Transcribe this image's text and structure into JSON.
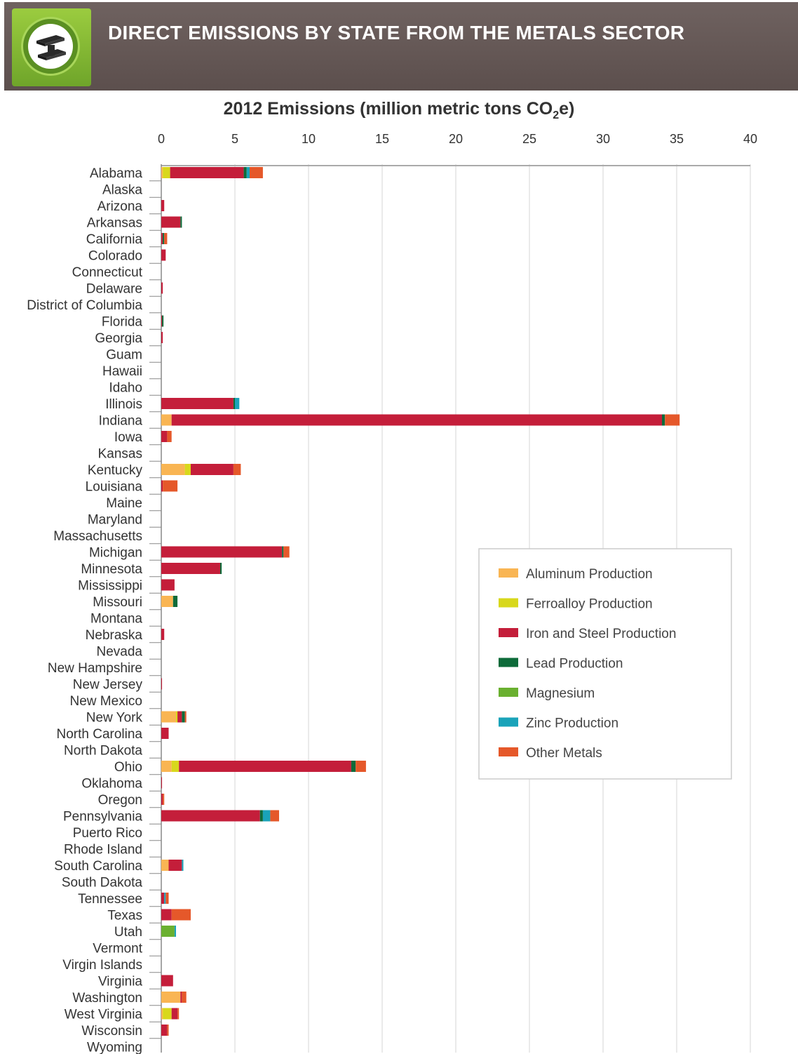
{
  "header": {
    "title": "DIRECT EMISSIONS BY STATE FROM THE METALS SECTOR",
    "icon": "steel-i-beam-icon",
    "colors": {
      "banner": "#63555a",
      "logo": "#8cc040"
    }
  },
  "chart_data": {
    "type": "bar",
    "orientation": "horizontal",
    "stacked": true,
    "title": "2012 Emissions (million metric tons CO2e)",
    "title_parts": {
      "before": "2012 Emissions (million  metric tons CO",
      "sub": "2",
      "after": "e)"
    },
    "xlim": [
      0,
      40
    ],
    "xticks": [
      "0",
      "5",
      "10",
      "15",
      "20",
      "25",
      "30",
      "35",
      "40"
    ],
    "grid": true,
    "axis_position": "top",
    "legend_position": "right-middle",
    "categories": [
      "Alabama",
      "Alaska",
      "Arizona",
      "Arkansas",
      "California",
      "Colorado",
      "Connecticut",
      "Delaware",
      "District of Columbia",
      "Florida",
      "Georgia",
      "Guam",
      "Hawaii",
      "Idaho",
      "Illinois",
      "Indiana",
      "Iowa",
      "Kansas",
      "Kentucky",
      "Louisiana",
      "Maine",
      "Maryland",
      "Massachusetts",
      "Michigan",
      "Minnesota",
      "Mississippi",
      "Missouri",
      "Montana",
      "Nebraska",
      "Nevada",
      "New Hampshire",
      "New Jersey",
      "New Mexico",
      "New York",
      "North Carolina",
      "North Dakota",
      "Ohio",
      "Oklahoma",
      "Oregon",
      "Pennsylvania",
      "Puerto Rico",
      "Rhode Island",
      "South Carolina",
      "South Dakota",
      "Tennessee",
      "Texas",
      "Utah",
      "Vermont",
      "Virgin Islands",
      "Virginia",
      "Washington",
      "West Virginia",
      "Wisconsin",
      "Wyoming"
    ],
    "series": [
      {
        "name": "Aluminum Production",
        "color": "#f9b553",
        "values": [
          0.1,
          0,
          0,
          0,
          0,
          0,
          0,
          0,
          0,
          0,
          0,
          0,
          0,
          0,
          0,
          0.7,
          0,
          0,
          1.6,
          0,
          0,
          0,
          0,
          0,
          0,
          0,
          0.8,
          0,
          0,
          0,
          0,
          0,
          0,
          1.0,
          0,
          0,
          0.7,
          0,
          0,
          0,
          0,
          0,
          0.5,
          0,
          0,
          0,
          0,
          0,
          0,
          0,
          1.3,
          0.1,
          0,
          0
        ]
      },
      {
        "name": "Ferroalloy Production",
        "color": "#d8d81c",
        "values": [
          0.5,
          0,
          0,
          0,
          0,
          0,
          0,
          0,
          0,
          0,
          0,
          0,
          0,
          0,
          0,
          0,
          0,
          0,
          0.4,
          0,
          0,
          0,
          0,
          0,
          0,
          0,
          0,
          0,
          0,
          0,
          0,
          0,
          0,
          0.1,
          0,
          0,
          0.5,
          0,
          0,
          0,
          0,
          0,
          0,
          0,
          0,
          0,
          0,
          0,
          0,
          0,
          0,
          0.6,
          0,
          0
        ]
      },
      {
        "name": "Iron and Steel Production",
        "color": "#c41e3a",
        "values": [
          5.0,
          0,
          0.2,
          1.3,
          0.1,
          0.3,
          0,
          0.1,
          0,
          0.05,
          0.1,
          0,
          0,
          0,
          4.9,
          33.3,
          0.4,
          0,
          2.9,
          0.1,
          0,
          0,
          0,
          8.2,
          4.0,
          0.9,
          0,
          0,
          0.2,
          0,
          0,
          0.05,
          0,
          0.3,
          0.5,
          0,
          11.7,
          0.05,
          0.1,
          6.7,
          0,
          0,
          0.9,
          0,
          0.2,
          0.7,
          0,
          0,
          0,
          0.8,
          0.1,
          0.4,
          0.4,
          0
        ]
      },
      {
        "name": "Lead Production",
        "color": "#0e6b3a",
        "values": [
          0.2,
          0,
          0,
          0.1,
          0.1,
          0,
          0,
          0,
          0,
          0.1,
          0,
          0,
          0,
          0,
          0.1,
          0.2,
          0,
          0,
          0,
          0,
          0,
          0,
          0,
          0.1,
          0.1,
          0,
          0.3,
          0,
          0,
          0,
          0,
          0,
          0,
          0.2,
          0,
          0,
          0.3,
          0,
          0,
          0.2,
          0,
          0,
          0,
          0,
          0,
          0,
          0,
          0,
          0,
          0,
          0,
          0,
          0,
          0
        ]
      },
      {
        "name": "Magnesium",
        "color": "#6ab030",
        "values": [
          0,
          0,
          0,
          0,
          0,
          0,
          0,
          0,
          0,
          0,
          0,
          0,
          0,
          0,
          0,
          0,
          0,
          0,
          0,
          0,
          0,
          0,
          0,
          0,
          0,
          0,
          0,
          0,
          0,
          0,
          0,
          0,
          0,
          0,
          0,
          0,
          0,
          0,
          0,
          0,
          0,
          0,
          0,
          0,
          0,
          0,
          0.9,
          0,
          0,
          0,
          0,
          0,
          0,
          0
        ]
      },
      {
        "name": "Zinc Production",
        "color": "#1aa3b9",
        "values": [
          0.2,
          0,
          0,
          0,
          0,
          0,
          0,
          0,
          0,
          0,
          0,
          0,
          0,
          0,
          0.3,
          0,
          0,
          0,
          0,
          0,
          0,
          0,
          0,
          0,
          0,
          0,
          0,
          0,
          0,
          0,
          0,
          0,
          0,
          0,
          0,
          0,
          0,
          0,
          0,
          0.5,
          0,
          0,
          0.1,
          0,
          0.1,
          0,
          0.1,
          0,
          0,
          0,
          0,
          0,
          0,
          0
        ]
      },
      {
        "name": "Other Metals",
        "color": "#e5582a",
        "values": [
          0.9,
          0,
          0,
          0,
          0.2,
          0,
          0,
          0,
          0,
          0,
          0,
          0,
          0,
          0,
          0,
          1.0,
          0.3,
          0,
          0.5,
          1.0,
          0,
          0,
          0,
          0.4,
          0,
          0,
          0,
          0,
          0,
          0,
          0,
          0,
          0,
          0.1,
          0,
          0,
          0.7,
          0,
          0.1,
          0.6,
          0,
          0,
          0,
          0,
          0.2,
          1.3,
          0,
          0,
          0,
          0,
          0.3,
          0.1,
          0.1,
          0
        ]
      }
    ]
  }
}
